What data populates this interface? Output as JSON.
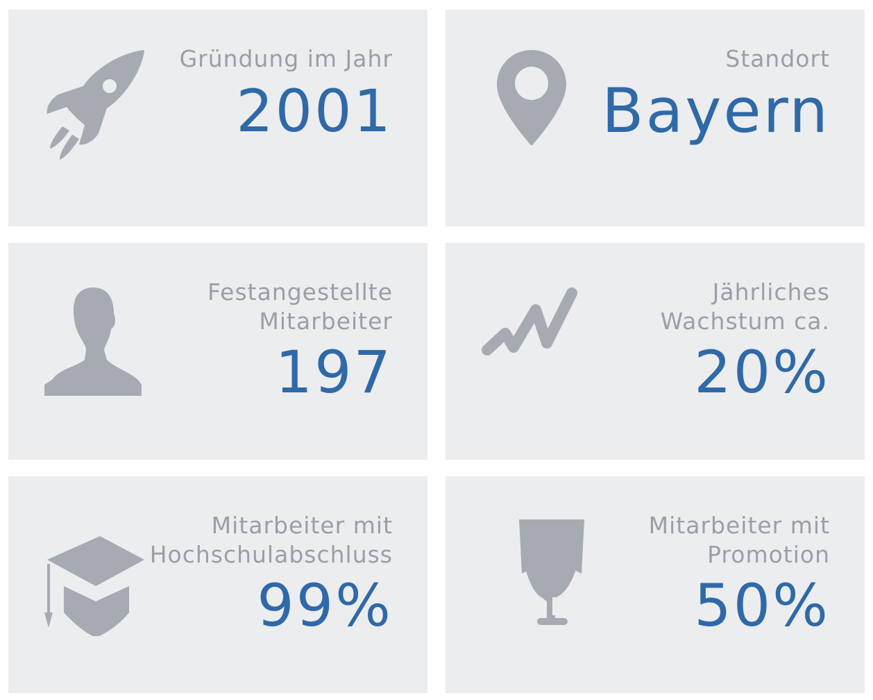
{
  "accent_color": "#2f69a8",
  "label_color": "#9a9ea6",
  "icon_color": "#a6aab2",
  "card_background": "#ecedef",
  "cards": {
    "founding": {
      "icon": "rocket-icon",
      "label": "Gründung im Jahr",
      "value": "2001"
    },
    "location": {
      "icon": "map-pin-icon",
      "label": "Standort",
      "value": "Bayern"
    },
    "employees": {
      "icon": "person-icon",
      "label_line1": "Festangestellte",
      "label_line2": "Mitarbeiter",
      "value": "197"
    },
    "growth": {
      "icon": "growth-chart-icon",
      "label_line1": "Jährliches",
      "label_line2": "Wachstum ca.",
      "value": "20%"
    },
    "graduates": {
      "icon": "graduation-cap-icon",
      "label_line1": "Mitarbeiter mit",
      "label_line2": "Hochschulabschluss",
      "value": "99%"
    },
    "doctorate": {
      "icon": "trophy-icon",
      "label_line1": "Mitarbeiter mit",
      "label_line2": "Promotion",
      "value": "50%"
    }
  }
}
